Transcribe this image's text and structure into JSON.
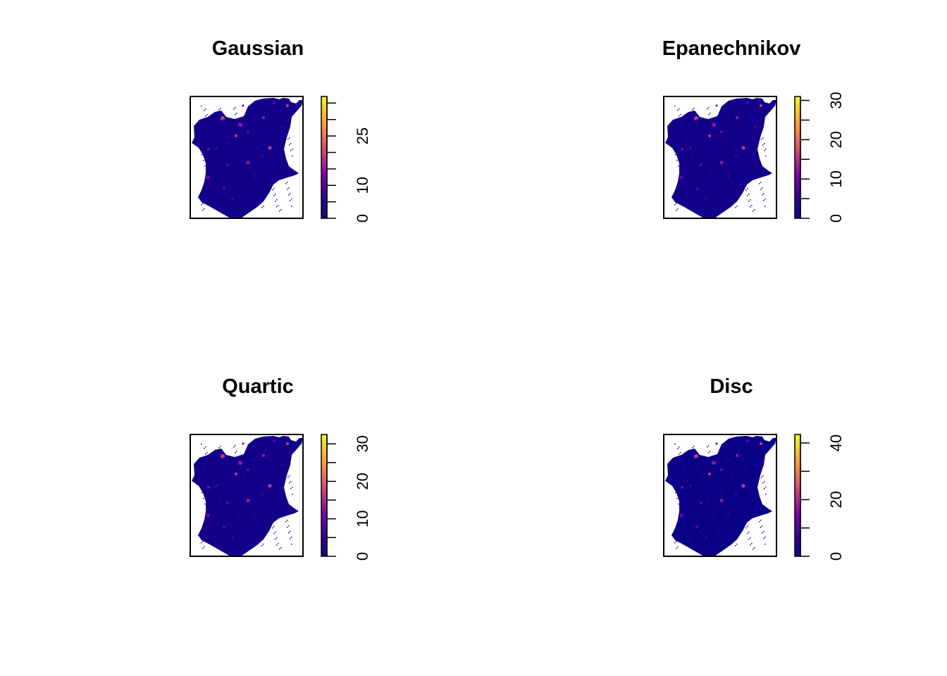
{
  "panels": [
    {
      "id": "gaussian",
      "title": "Gaussian",
      "legend": {
        "min": 0,
        "max": 37,
        "ticks": [
          0,
          5,
          10,
          15,
          20,
          25,
          30,
          35
        ],
        "labels": [
          "0",
          "",
          "10",
          "",
          "",
          "25",
          "",
          ""
        ]
      }
    },
    {
      "id": "epanechnikov",
      "title": "Epanechnikov",
      "legend": {
        "min": 0,
        "max": 31,
        "ticks": [
          0,
          5,
          10,
          15,
          20,
          25,
          30
        ],
        "labels": [
          "0",
          "",
          "10",
          "",
          "20",
          "",
          "30"
        ]
      }
    },
    {
      "id": "quartic",
      "title": "Quartic",
      "legend": {
        "min": 0,
        "max": 32.5,
        "ticks": [
          0,
          5,
          10,
          15,
          20,
          25,
          30
        ],
        "labels": [
          "0",
          "",
          "10",
          "",
          "20",
          "",
          "30"
        ]
      }
    },
    {
      "id": "disc",
      "title": "Disc",
      "legend": {
        "min": 0,
        "max": 43,
        "ticks": [
          0,
          10,
          20,
          30,
          40
        ],
        "labels": [
          "0",
          "",
          "20",
          "",
          "40"
        ]
      }
    }
  ],
  "colors": {
    "background": "#00008B",
    "palette": [
      "#0D0887",
      "#3A04A0",
      "#6A00A8",
      "#9C179E",
      "#C33D80",
      "#E16462",
      "#F89441",
      "#FCCE25",
      "#F0F921"
    ],
    "frame": "#000000"
  }
}
